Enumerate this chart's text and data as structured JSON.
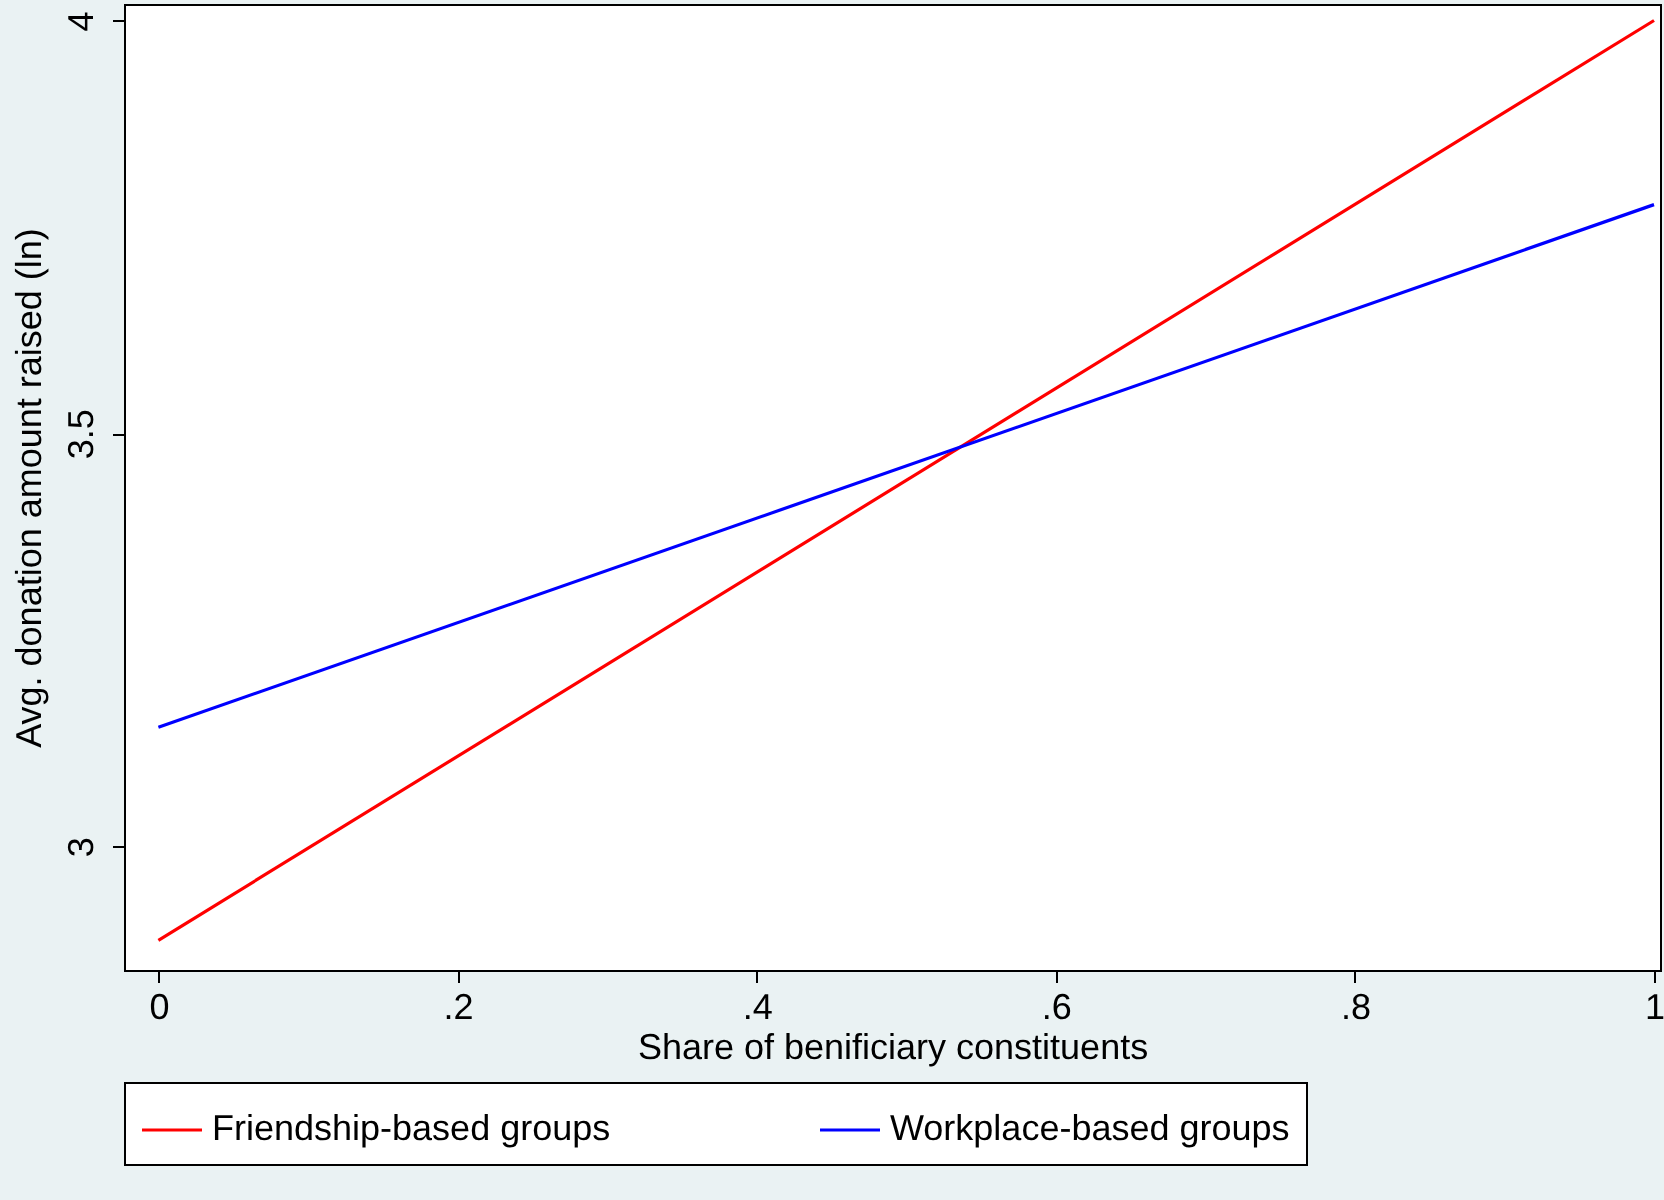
{
  "chart_data": {
    "type": "line",
    "xlabel": "Share of benificiary constituents",
    "ylabel": "Avg. donation amount raised (ln)",
    "x": [
      0,
      1
    ],
    "series": [
      {
        "name": "Friendship-based groups",
        "color": "#ff0000",
        "values": [
          2.886,
          4.0
        ]
      },
      {
        "name": "Workplace-based groups",
        "color": "#0000ff",
        "values": [
          3.144,
          3.777
        ]
      }
    ],
    "xlim": [
      -0.023,
      1.004
    ],
    "xticks": [
      0,
      {
        "value": 0.2,
        "label": ".2"
      },
      {
        "value": 0.4,
        "label": ".4"
      },
      {
        "value": 0.6,
        "label": ".6"
      },
      {
        "value": 0.8,
        "label": ".8"
      },
      1
    ],
    "ylim": [
      2.85,
      4.02
    ],
    "yticks": [
      3,
      3.5,
      4
    ],
    "grid": false,
    "legend": "bottom",
    "marker": "none",
    "line_style": "solid"
  }
}
